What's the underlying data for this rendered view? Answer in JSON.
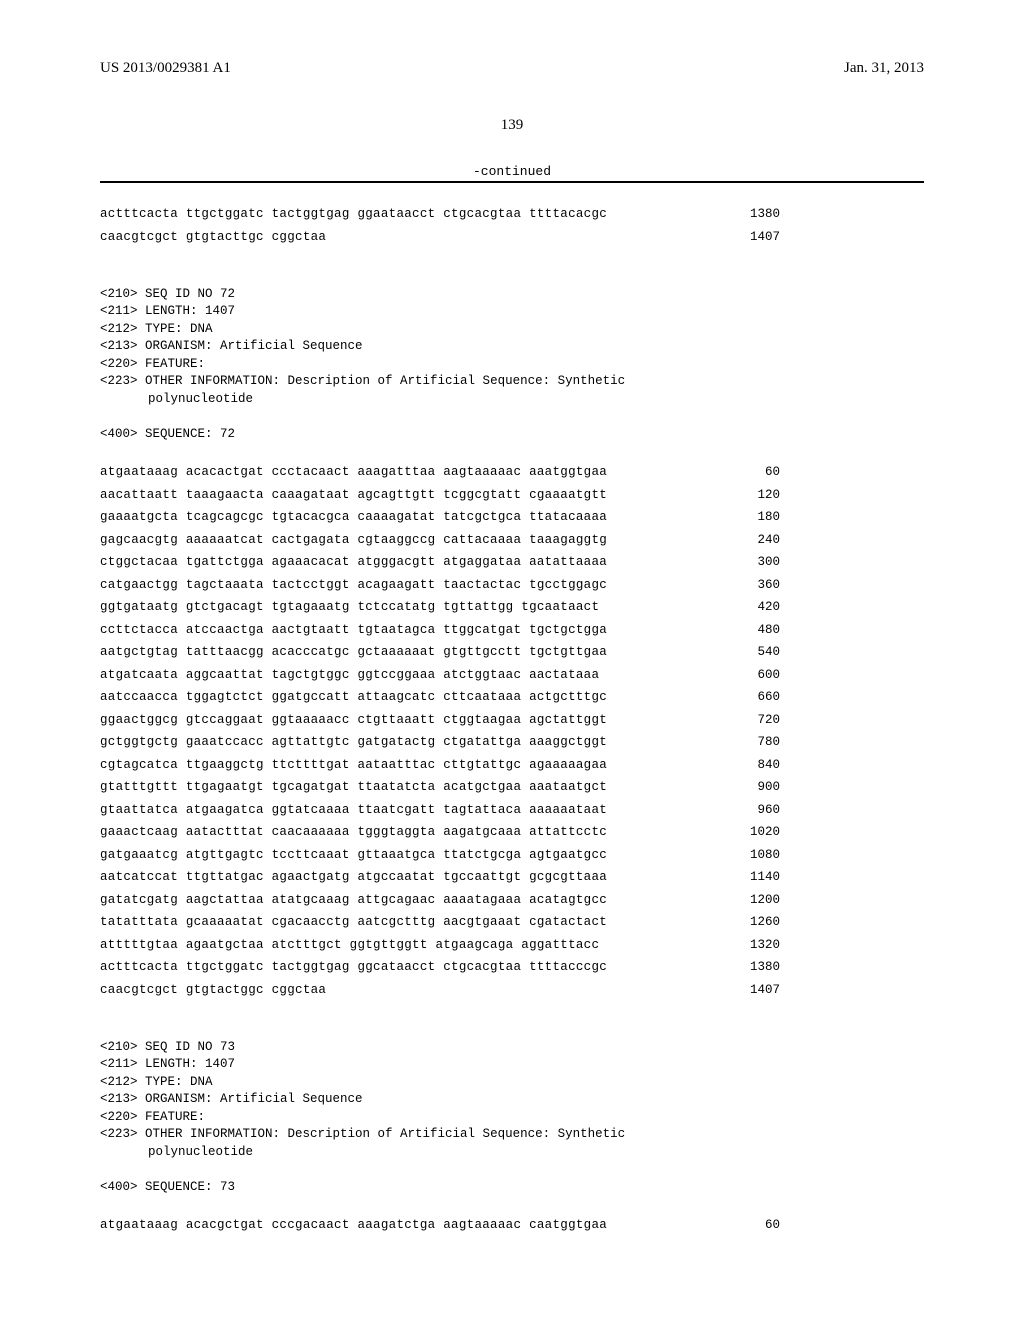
{
  "header": {
    "patent_number": "US 2013/0029381 A1",
    "date": "Jan. 31, 2013"
  },
  "page_number": "139",
  "continued": "-continued",
  "seq71_tail": {
    "lines": [
      {
        "text": "actttcacta ttgctggatc tactggtgag ggaataacct ctgcacgtaa ttttacacgc",
        "num": "1380"
      },
      {
        "text": "caacgtcgct gtgtacttgc cggctaa",
        "num": "1407"
      }
    ]
  },
  "seq72_meta": {
    "id": "<210> SEQ ID NO 72",
    "length": "<211> LENGTH: 1407",
    "type": "<212> TYPE: DNA",
    "organism": "<213> ORGANISM: Artificial Sequence",
    "feature": "<220> FEATURE:",
    "other_info": "<223> OTHER INFORMATION: Description of Artificial Sequence: Synthetic",
    "other_info2": "polynucleotide",
    "sequence_label": "<400> SEQUENCE: 72"
  },
  "seq72": {
    "lines": [
      {
        "text": "atgaataaag acacactgat ccctacaact aaagatttaa aagtaaaaac aaatggtgaa",
        "num": "60"
      },
      {
        "text": "aacattaatt taaagaacta caaagataat agcagttgtt tcggcgtatt cgaaaatgtt",
        "num": "120"
      },
      {
        "text": "gaaaatgcta tcagcagcgc tgtacacgca caaaagatat tatcgctgca ttatacaaaa",
        "num": "180"
      },
      {
        "text": "gagcaacgtg aaaaaatcat cactgagata cgtaaggccg cattacaaaa taaagaggtg",
        "num": "240"
      },
      {
        "text": "ctggctacaa tgattctgga agaaacacat atgggacgtt atgaggataa aatattaaaa",
        "num": "300"
      },
      {
        "text": "catgaactgg tagctaaata tactcctggt acagaagatt taactactac tgcctggagc",
        "num": "360"
      },
      {
        "text": "ggtgataatg gtctgacagt tgtagaaatg tctccatatg tgttattgg tgcaataact",
        "num": "420"
      },
      {
        "text": "ccttctacca atccaactga aactgtaatt tgtaatagca ttggcatgat tgctgctgga",
        "num": "480"
      },
      {
        "text": "aatgctgtag tatttaacgg acacccatgc gctaaaaaat gtgttgcctt tgctgttgaa",
        "num": "540"
      },
      {
        "text": "atgatcaata aggcaattat tagctgtggc ggtccggaaa atctggtaac aactataaa",
        "num": "600"
      },
      {
        "text": "aatccaacca tggagtctct ggatgccatt attaagcatc cttcaataaa actgctttgc",
        "num": "660"
      },
      {
        "text": "ggaactggcg gtccaggaat ggtaaaaacc ctgttaaatt ctggtaagaa agctattggt",
        "num": "720"
      },
      {
        "text": "gctggtgctg gaaatccacc agttattgtc gatgatactg ctgatattga aaaggctggt",
        "num": "780"
      },
      {
        "text": "cgtagcatca ttgaaggctg ttcttttgat aataatttac cttgtattgc agaaaaagaa",
        "num": "840"
      },
      {
        "text": "gtatttgttt ttgagaatgt tgcagatgat ttaatatcta acatgctgaa aaataatgct",
        "num": "900"
      },
      {
        "text": "gtaattatca atgaagatca ggtatcaaaa ttaatcgatt tagtattaca aaaaaataat",
        "num": "960"
      },
      {
        "text": "gaaactcaag aatactttat caacaaaaaa tgggtaggta aagatgcaaa attattcctc",
        "num": "1020"
      },
      {
        "text": "gatgaaatcg atgttgagtc tccttcaaat gttaaatgca ttatctgcga agtgaatgcc",
        "num": "1080"
      },
      {
        "text": "aatcatccat ttgttatgac agaactgatg atgccaatat tgccaattgt gcgcgttaaa",
        "num": "1140"
      },
      {
        "text": "gatatcgatg aagctattaa atatgcaaag attgcagaac aaaatagaaa acatagtgcc",
        "num": "1200"
      },
      {
        "text": "tatatttata gcaaaaatat cgacaacctg aatcgctttg aacgtgaaat cgatactact",
        "num": "1260"
      },
      {
        "text": "atttttgtaa agaatgctaa atctttgct ggtgttggtt atgaagcaga aggatttacc",
        "num": "1320"
      },
      {
        "text": "actttcacta ttgctggatc tactggtgag ggcataacct ctgcacgtaa ttttacccgc",
        "num": "1380"
      },
      {
        "text": "caacgtcgct gtgtactggc cggctaa",
        "num": "1407"
      }
    ]
  },
  "seq73_meta": {
    "id": "<210> SEQ ID NO 73",
    "length": "<211> LENGTH: 1407",
    "type": "<212> TYPE: DNA",
    "organism": "<213> ORGANISM: Artificial Sequence",
    "feature": "<220> FEATURE:",
    "other_info": "<223> OTHER INFORMATION: Description of Artificial Sequence: Synthetic",
    "other_info2": "polynucleotide",
    "sequence_label": "<400> SEQUENCE: 73"
  },
  "seq73": {
    "lines": [
      {
        "text": "atgaataaag acacgctgat cccgacaact aaagatctga aagtaaaaac caatggtgaa",
        "num": "60"
      }
    ]
  }
}
